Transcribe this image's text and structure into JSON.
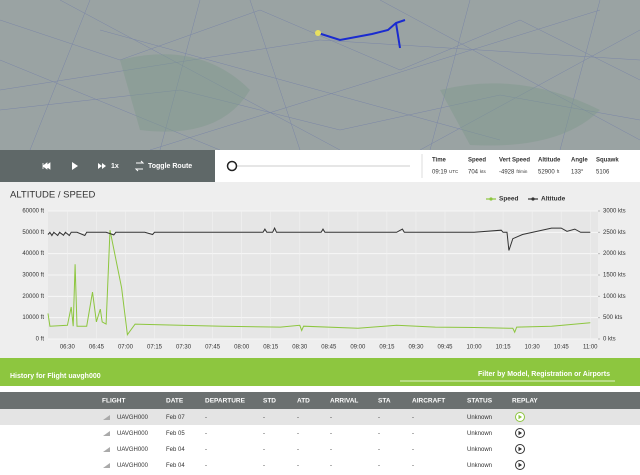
{
  "controls": {
    "speed_factor": "1x",
    "toggle": "Toggle Route"
  },
  "stats": [
    {
      "label": "Time",
      "value": "09:19",
      "unit": "UTC"
    },
    {
      "label": "Speed",
      "value": "704",
      "unit": "kts"
    },
    {
      "label": "Vert Speed",
      "value": "-4928",
      "unit": "ft/min"
    },
    {
      "label": "Altitude",
      "value": "52900",
      "unit": "ft"
    },
    {
      "label": "Angle",
      "value": "133°"
    },
    {
      "label": "Squawk",
      "value": "5106"
    }
  ],
  "chart_data": {
    "type": "line",
    "title": "ALTITUDE / SPEED",
    "xlim": [
      380,
      664
    ],
    "xticks": [
      {
        "value": 390,
        "label": "06:30"
      },
      {
        "value": 405,
        "label": "06:45"
      },
      {
        "value": 420,
        "label": "07:00"
      },
      {
        "value": 435,
        "label": "07:15"
      },
      {
        "value": 450,
        "label": "07:30"
      },
      {
        "value": 465,
        "label": "07:45"
      },
      {
        "value": 480,
        "label": "08:00"
      },
      {
        "value": 495,
        "label": "08:15"
      },
      {
        "value": 510,
        "label": "08:30"
      },
      {
        "value": 525,
        "label": "08:45"
      },
      {
        "value": 540,
        "label": "09:00"
      },
      {
        "value": 555,
        "label": "09:15"
      },
      {
        "value": 570,
        "label": "09:30"
      },
      {
        "value": 585,
        "label": "09:45"
      },
      {
        "value": 600,
        "label": "10:00"
      },
      {
        "value": 615,
        "label": "10:15"
      },
      {
        "value": 630,
        "label": "10:30"
      },
      {
        "value": 645,
        "label": "10:45"
      },
      {
        "value": 660,
        "label": "11:00"
      }
    ],
    "ylim": [
      0,
      60000
    ],
    "yticks": [
      {
        "value": 0,
        "label": "0 ft"
      },
      {
        "value": 10000,
        "label": "10000 ft"
      },
      {
        "value": 20000,
        "label": "20000 ft"
      },
      {
        "value": 30000,
        "label": "30000 ft"
      },
      {
        "value": 40000,
        "label": "40000 ft"
      },
      {
        "value": 50000,
        "label": "50000 ft"
      },
      {
        "value": 60000,
        "label": "60000 ft"
      }
    ],
    "y2lim": [
      0,
      3000
    ],
    "y2ticks": [
      {
        "value": 0,
        "label": "0 kts"
      },
      {
        "value": 500,
        "label": "500 kts"
      },
      {
        "value": 1000,
        "label": "1000 kts"
      },
      {
        "value": 1500,
        "label": "1500 kts"
      },
      {
        "value": 2000,
        "label": "2000 kts"
      },
      {
        "value": 2500,
        "label": "2500 kts"
      },
      {
        "value": 3000,
        "label": "3000 kts"
      }
    ],
    "grid": true,
    "series": [
      {
        "name": "Speed",
        "color": "#8dc63f",
        "axis": "y2",
        "x": [
          380,
          381,
          390,
          392,
          393,
          394,
          395,
          400,
          403,
          405,
          407,
          408,
          410,
          412,
          418,
          421,
          425,
          440,
          470,
          500,
          510,
          511,
          512,
          540,
          560,
          580,
          600,
          620,
          621,
          622,
          640,
          660
        ],
        "values": [
          600,
          300,
          320,
          750,
          300,
          1750,
          300,
          300,
          1100,
          400,
          700,
          400,
          350,
          2550,
          1200,
          100,
          350,
          330,
          300,
          280,
          320,
          200,
          300,
          250,
          320,
          280,
          270,
          250,
          160,
          280,
          300,
          380
        ]
      },
      {
        "name": "Altitude",
        "color": "#333333",
        "axis": "y",
        "x": [
          380,
          381,
          382,
          383,
          385,
          386,
          388,
          389,
          391,
          392,
          395,
          399,
          400,
          405,
          410,
          414,
          415,
          430,
          434,
          435,
          450,
          480,
          491,
          492,
          493,
          496,
          497,
          498,
          521,
          522,
          523,
          560,
          563,
          564,
          600,
          614,
          615,
          617,
          618,
          620,
          625,
          640,
          645,
          648,
          652,
          655,
          660
        ],
        "values": [
          49000,
          50000,
          48500,
          50000,
          48500,
          50000,
          48600,
          50000,
          48500,
          50000,
          50000,
          48500,
          50000,
          50000,
          50000,
          48800,
          50000,
          50000,
          49000,
          50000,
          50000,
          50000,
          50000,
          51500,
          50000,
          50000,
          52000,
          50000,
          50000,
          51500,
          50000,
          50000,
          51500,
          50000,
          50000,
          51000,
          50000,
          50000,
          41500,
          47000,
          49000,
          52000,
          52000,
          50500,
          51500,
          50000,
          50000
        ]
      }
    ]
  },
  "history": {
    "title": "History for Flight uavgh000",
    "filter": "Filter by Model, Registration or Airports"
  },
  "table": {
    "columns": [
      "FLIGHT",
      "DATE",
      "DEPARTURE",
      "STD",
      "ATD",
      "ARRIVAL",
      "STA",
      "AIRCRAFT",
      "STATUS",
      "REPLAY"
    ],
    "rows": [
      [
        "UAVGH000",
        "Feb 07",
        "-",
        "-",
        "-",
        "-",
        "-",
        "-",
        "Unknown"
      ],
      [
        "UAVGH000",
        "Feb 05",
        "-",
        "-",
        "-",
        "-",
        "-",
        "-",
        "Unknown"
      ],
      [
        "UAVGH000",
        "Feb 04",
        "-",
        "-",
        "-",
        "-",
        "-",
        "-",
        "Unknown"
      ],
      [
        "UAVGH000",
        "Feb 04",
        "-",
        "-",
        "-",
        "-",
        "-",
        "-",
        "Unknown"
      ]
    ]
  }
}
